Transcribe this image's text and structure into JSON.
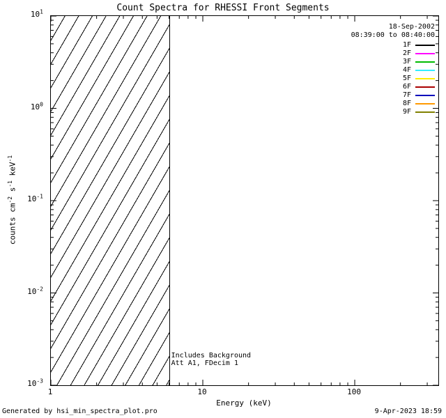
{
  "title": "Count Spectra for RHESSI Front Segments",
  "legend": {
    "date": "18-Sep-2002",
    "time_range": "08:39:00 to 08:40:00",
    "entries": [
      {
        "label": "1F",
        "color": "#000000"
      },
      {
        "label": "2F",
        "color": "#ff00ff"
      },
      {
        "label": "3F",
        "color": "#00bb00"
      },
      {
        "label": "4F",
        "color": "#33eeff"
      },
      {
        "label": "5F",
        "color": "#ffee00"
      },
      {
        "label": "6F",
        "color": "#aa0000"
      },
      {
        "label": "7F",
        "color": "#0000bb"
      },
      {
        "label": "8F",
        "color": "#ff9900"
      },
      {
        "label": "9F",
        "color": "#808000"
      }
    ]
  },
  "annotations": [
    "Includes Background",
    "Att A1, FDecim 1"
  ],
  "footer": {
    "left": "Generated by hsi_min_spectra_plot.pro",
    "right": "9-Apr-2023 18:59"
  },
  "chart_data": {
    "type": "line",
    "title": "Count Spectra for RHESSI Front Segments",
    "xlabel": "Energy (keV)",
    "ylabel": "counts cm^-2 s^-1 keV^-1",
    "ylabel_parts": [
      [
        "counts cm",
        "-2"
      ],
      [
        " s",
        "-1"
      ],
      [
        " keV",
        "-1"
      ]
    ],
    "x_scale": "log",
    "y_scale": "log",
    "xlim": [
      1,
      355
    ],
    "ylim": [
      0.001,
      10
    ],
    "x_tick_values": [
      1,
      10,
      100
    ],
    "x_tick_labels": [
      "1",
      "10",
      "100"
    ],
    "y_tick_exponents": [
      1,
      0,
      -1,
      -2,
      -3
    ],
    "grid": false,
    "legend_position": "top-right-inside",
    "hatched_region": {
      "x_start": 1,
      "x_end": 6,
      "style": "diagonal-lines"
    },
    "vertical_line_x": 6,
    "series": []
  }
}
